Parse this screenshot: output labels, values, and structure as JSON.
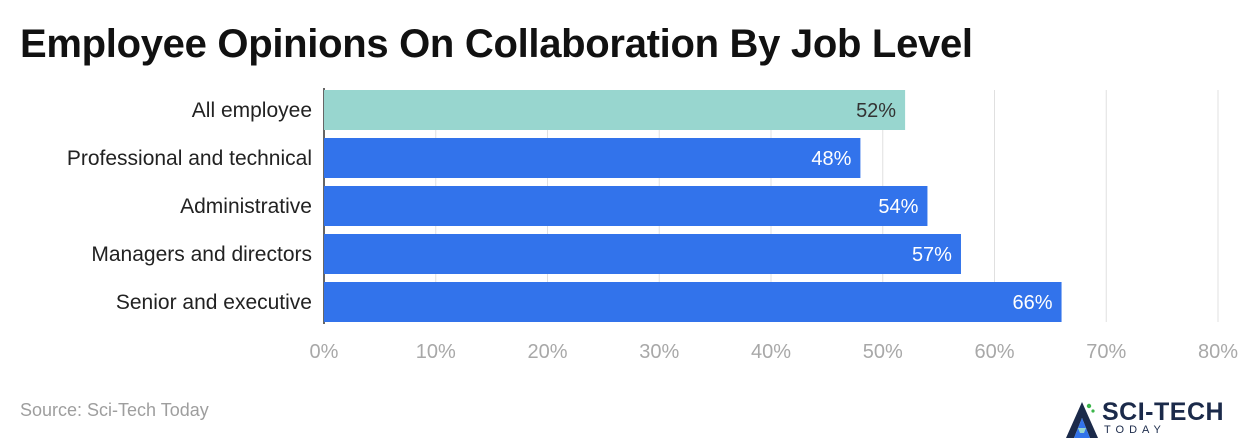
{
  "chart_data": {
    "type": "bar",
    "orientation": "horizontal",
    "title": "Employee Opinions On Collaboration By Job Level",
    "categories": [
      "All employee",
      "Professional and technical",
      "Administrative",
      "Managers and directors",
      "Senior and executive"
    ],
    "values": [
      52,
      48,
      54,
      57,
      66
    ],
    "value_labels": [
      "52%",
      "48%",
      "54%",
      "57%",
      "66%"
    ],
    "xlim": [
      0,
      80
    ],
    "xticks": [
      0,
      10,
      20,
      30,
      40,
      50,
      60,
      70,
      80
    ],
    "xtick_labels": [
      "0%",
      "10%",
      "20%",
      "30%",
      "40%",
      "50%",
      "60%",
      "70%",
      "80%"
    ],
    "grid": true,
    "colors": {
      "highlight": "#98d6cf",
      "bar": "#3273eb",
      "highlight_label": "#333333",
      "bar_label": "#ffffff",
      "grid": "#e0e0e0",
      "tick": "#a8a8a8"
    },
    "highlight_index": 0
  },
  "source": "Source: Sci-Tech Today",
  "logo": {
    "main": "SCI-TECH",
    "sub": "TODAY",
    "icon": "flask-a-logo-icon"
  }
}
